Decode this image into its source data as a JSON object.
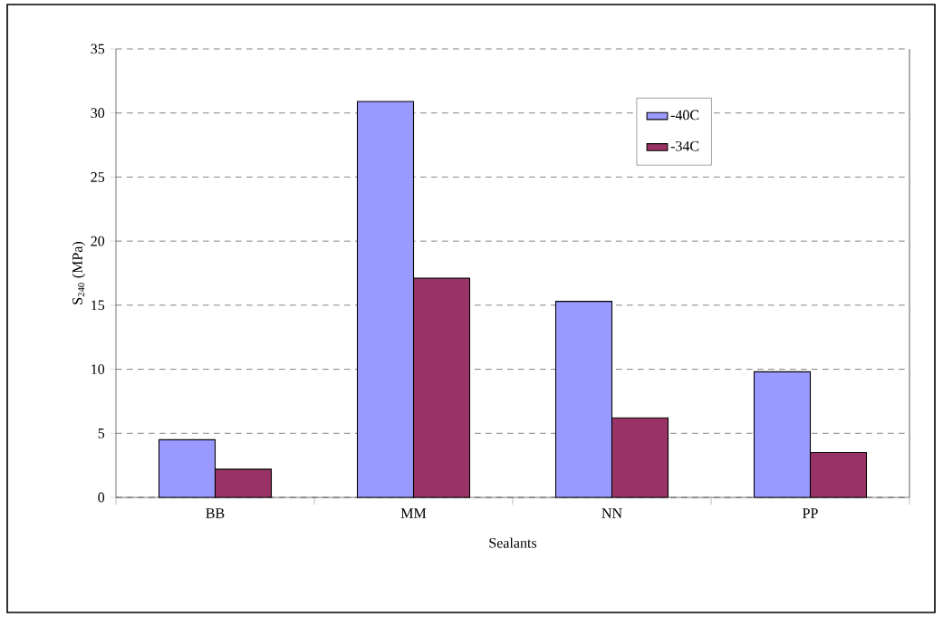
{
  "chart_data": {
    "type": "bar",
    "xlabel": "Sealants",
    "ylabel": "S$_{240}$ (MPa)",
    "categories": [
      "BB",
      "MM",
      "NN",
      "PP"
    ],
    "series": [
      {
        "name": "-40C",
        "color": "#9999ff",
        "values": [
          4.5,
          30.9,
          15.3,
          9.8
        ]
      },
      {
        "name": "-34C",
        "color": "#993366",
        "values": [
          2.2,
          17.1,
          6.2,
          3.5
        ]
      }
    ],
    "ylim": [
      0,
      35
    ],
    "yticks": [
      0,
      5,
      10,
      15,
      20,
      25,
      30,
      35
    ],
    "grid": "y",
    "legend": "top right"
  }
}
